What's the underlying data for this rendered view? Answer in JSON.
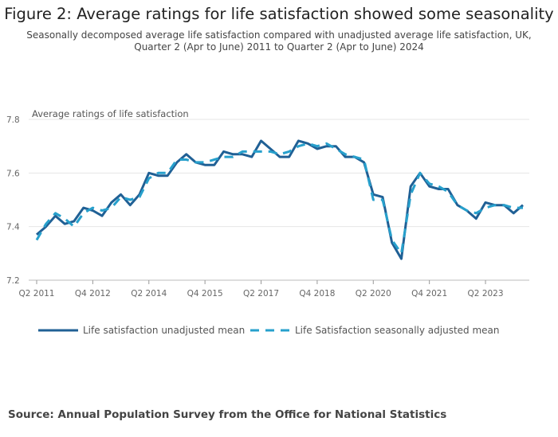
{
  "chart_data": {
    "type": "line",
    "title": "Figure 2: Average ratings for life satisfaction showed some seasonality",
    "subtitle": "Seasonally decomposed average life satisfaction compared with unadjusted average life satisfaction, UK, Quarter 2 (Apr to June) 2011 to Quarter 2 (Apr to June) 2024",
    "ylabel": "Average ratings of life satisfaction",
    "xlabel": "",
    "ylim": [
      7.2,
      7.8
    ],
    "yticks": [
      "7.2",
      "7.4",
      "7.6",
      "7.8"
    ],
    "ytick_values": [
      7.2,
      7.4,
      7.6,
      7.8
    ],
    "grid": true,
    "legend_position": "bottom",
    "xtick_labels": [
      "Q2 2011",
      "Q4 2012",
      "Q2 2014",
      "Q4 2015",
      "Q2 2017",
      "Q4 2018",
      "Q2 2020",
      "Q4 2021",
      "Q2 2023"
    ],
    "xtick_indices": [
      0,
      6,
      12,
      18,
      24,
      30,
      36,
      42,
      48
    ],
    "x": [
      "Q2 2011",
      "Q3 2011",
      "Q4 2011",
      "Q1 2012",
      "Q2 2012",
      "Q3 2012",
      "Q4 2012",
      "Q1 2013",
      "Q2 2013",
      "Q3 2013",
      "Q4 2013",
      "Q1 2014",
      "Q2 2014",
      "Q3 2014",
      "Q4 2014",
      "Q1 2015",
      "Q2 2015",
      "Q3 2015",
      "Q4 2015",
      "Q1 2016",
      "Q2 2016",
      "Q3 2016",
      "Q4 2016",
      "Q1 2017",
      "Q2 2017",
      "Q3 2017",
      "Q4 2017",
      "Q1 2018",
      "Q2 2018",
      "Q3 2018",
      "Q4 2018",
      "Q1 2019",
      "Q2 2019",
      "Q3 2019",
      "Q4 2019",
      "Q1 2020",
      "Q2 2020",
      "Q3 2020",
      "Q4 2020",
      "Q1 2021",
      "Q2 2021",
      "Q3 2021",
      "Q4 2021",
      "Q1 2022",
      "Q2 2022",
      "Q3 2022",
      "Q4 2022",
      "Q1 2023",
      "Q2 2023",
      "Q3 2023",
      "Q4 2023",
      "Q1 2024",
      "Q2 2024"
    ],
    "series": [
      {
        "name": "Life satisfaction unadjusted mean",
        "color": "#206095",
        "style": "solid",
        "values": [
          7.37,
          7.4,
          7.44,
          7.41,
          7.42,
          7.47,
          7.46,
          7.44,
          7.49,
          7.52,
          7.48,
          7.52,
          7.6,
          7.59,
          7.59,
          7.64,
          7.67,
          7.64,
          7.63,
          7.63,
          7.68,
          7.67,
          7.67,
          7.66,
          7.72,
          7.69,
          7.66,
          7.66,
          7.72,
          7.71,
          7.69,
          7.7,
          7.7,
          7.66,
          7.66,
          7.64,
          7.52,
          7.51,
          7.34,
          7.28,
          7.55,
          7.6,
          7.55,
          7.54,
          7.54,
          7.48,
          7.46,
          7.43,
          7.49,
          7.48,
          7.48,
          7.45,
          7.48
        ]
      },
      {
        "name": "Life Satisfaction seasonally adjusted mean",
        "color": "#27a0cc",
        "style": "dashed",
        "values": [
          7.35,
          7.41,
          7.45,
          7.43,
          7.4,
          7.45,
          7.47,
          7.46,
          7.47,
          7.51,
          7.5,
          7.51,
          7.58,
          7.6,
          7.6,
          7.65,
          7.65,
          7.64,
          7.64,
          7.65,
          7.66,
          7.66,
          7.68,
          7.68,
          7.68,
          7.68,
          7.67,
          7.68,
          7.7,
          7.71,
          7.7,
          7.71,
          7.69,
          7.67,
          7.66,
          7.65,
          7.5,
          7.5,
          7.35,
          7.3,
          7.52,
          7.6,
          7.56,
          7.55,
          7.53,
          7.48,
          7.46,
          7.45,
          7.47,
          7.48,
          7.48,
          7.47,
          7.47
        ]
      }
    ]
  },
  "source_text": "Source: Annual Population Survey from the Office for National Statistics"
}
